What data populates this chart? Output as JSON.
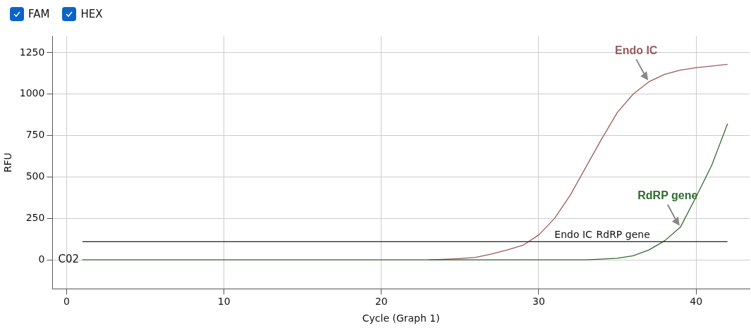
{
  "chart_data": {
    "type": "line",
    "xlabel": "Cycle (Graph 1)",
    "ylabel": "RFU",
    "x": [
      1,
      2,
      3,
      4,
      5,
      6,
      7,
      8,
      9,
      10,
      11,
      12,
      13,
      14,
      15,
      16,
      17,
      18,
      19,
      20,
      21,
      22,
      23,
      24,
      25,
      26,
      27,
      28,
      29,
      30,
      31,
      32,
      33,
      34,
      35,
      36,
      37,
      38,
      39,
      40,
      41,
      42
    ],
    "series": [
      {
        "name": "Endo IC",
        "color": "#9b5a5a",
        "values": [
          null,
          null,
          null,
          null,
          null,
          null,
          null,
          null,
          null,
          null,
          null,
          null,
          null,
          null,
          null,
          null,
          null,
          null,
          null,
          null,
          null,
          null,
          0,
          3,
          8,
          15,
          35,
          60,
          88,
          150,
          250,
          390,
          560,
          730,
          890,
          1000,
          1075,
          1120,
          1145,
          1160,
          1170,
          1180
        ]
      },
      {
        "name": "RdRP gene",
        "color": "#2e6b2e",
        "values": [
          0,
          0,
          0,
          0,
          0,
          0,
          0,
          0,
          0,
          0,
          0,
          0,
          0,
          0,
          0,
          0,
          0,
          0,
          0,
          0,
          0,
          0,
          0,
          0,
          0,
          0,
          0,
          0,
          0,
          0,
          0,
          0,
          0,
          5,
          10,
          25,
          60,
          115,
          197,
          380,
          572,
          822
        ]
      }
    ],
    "xlim": [
      -0.9,
      43.4
    ],
    "xticks": [
      0,
      10,
      20,
      30,
      40
    ],
    "ylim": [
      -175,
      1350
    ],
    "yticks": [
      0,
      250,
      500,
      750,
      1000,
      1250
    ],
    "ref_lines": [
      {
        "axis": "y",
        "value": 110,
        "label": "RdRP gene",
        "color": "#222222"
      }
    ],
    "annotations": [
      "FAM",
      "HEX",
      "C02",
      {
        "text": "Endo IC",
        "x": 31,
        "y": 110
      }
    ],
    "grid": true,
    "legend": false,
    "marker": "none",
    "line_style": "solid"
  }
}
